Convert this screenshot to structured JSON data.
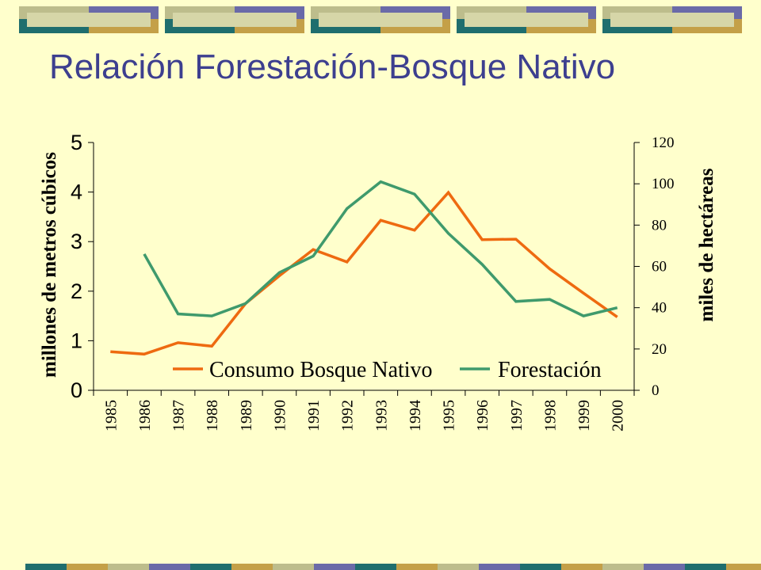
{
  "slide": {
    "title": "Relación Forestación-Bosque Nativo"
  },
  "colors": {
    "background": "#ffffcc",
    "title": "#3d3f8f",
    "consumo": "#ee6a10",
    "forestacion": "#3f9a6c",
    "deco_teal": "#1f6e6e",
    "deco_slate": "#6a6aa8",
    "deco_olive": "#bdbd8c",
    "deco_gold": "#c4a048",
    "deco_light": "#d6d6a8"
  },
  "chart_data": {
    "type": "line",
    "categories": [
      "1985",
      "1986",
      "1987",
      "1988",
      "1989",
      "1990",
      "1991",
      "1992",
      "1993",
      "1994",
      "1995",
      "1996",
      "1997",
      "1998",
      "1999",
      "2000"
    ],
    "series": [
      {
        "name": "Consumo Bosque Nativo",
        "axis": "left",
        "color": "#ee6a10",
        "values": [
          0.78,
          0.73,
          0.96,
          0.89,
          1.75,
          2.31,
          2.84,
          2.59,
          3.43,
          3.23,
          3.99,
          3.04,
          3.05,
          2.45,
          1.96,
          1.48
        ]
      },
      {
        "name": "Forestación",
        "axis": "right",
        "color": "#3f9a6c",
        "values": [
          null,
          66,
          37,
          36,
          42,
          57,
          65,
          88,
          101,
          95,
          76,
          61,
          43,
          44,
          36,
          40
        ]
      }
    ],
    "ylabel": "millones de metros cúbicos",
    "y2label": "miles de hectáreas",
    "ylim": [
      0,
      5
    ],
    "y2lim": [
      0,
      120
    ],
    "yticks": [
      "0",
      "1",
      "2",
      "3",
      "4",
      "5"
    ],
    "y2ticks": [
      "0",
      "20",
      "40",
      "60",
      "80",
      "100",
      "120"
    ],
    "grid": false,
    "legend_position": "bottom-center"
  }
}
